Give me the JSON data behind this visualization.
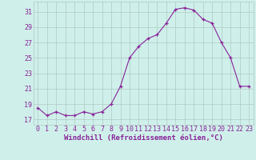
{
  "x": [
    0,
    1,
    2,
    3,
    4,
    5,
    6,
    7,
    8,
    9,
    10,
    11,
    12,
    13,
    14,
    15,
    16,
    17,
    18,
    19,
    20,
    21,
    22,
    23
  ],
  "y": [
    18.5,
    17.5,
    18.0,
    17.5,
    17.5,
    18.0,
    17.7,
    18.0,
    19.0,
    21.3,
    25.0,
    26.5,
    27.5,
    28.0,
    29.5,
    31.3,
    31.5,
    31.2,
    30.0,
    29.5,
    27.0,
    25.0,
    21.3,
    21.3
  ],
  "line_color": "#882299",
  "marker": "+",
  "bg_color": "#cff0ea",
  "grid_color": "#b0c8c4",
  "xlabel": "Windchill (Refroidissement éolien,°C)",
  "ylabel_ticks": [
    17,
    19,
    21,
    23,
    25,
    27,
    29,
    31
  ],
  "xlim": [
    -0.5,
    23.5
  ],
  "ylim": [
    16.3,
    32.3
  ],
  "xtick_labels": [
    "0",
    "1",
    "2",
    "3",
    "4",
    "5",
    "6",
    "7",
    "8",
    "9",
    "10",
    "11",
    "12",
    "13",
    "14",
    "15",
    "16",
    "17",
    "18",
    "19",
    "20",
    "21",
    "22",
    "23"
  ],
  "title_color": "#882299",
  "axis_color": "#882299",
  "label_fontsize": 6.5,
  "tick_fontsize": 6.0
}
